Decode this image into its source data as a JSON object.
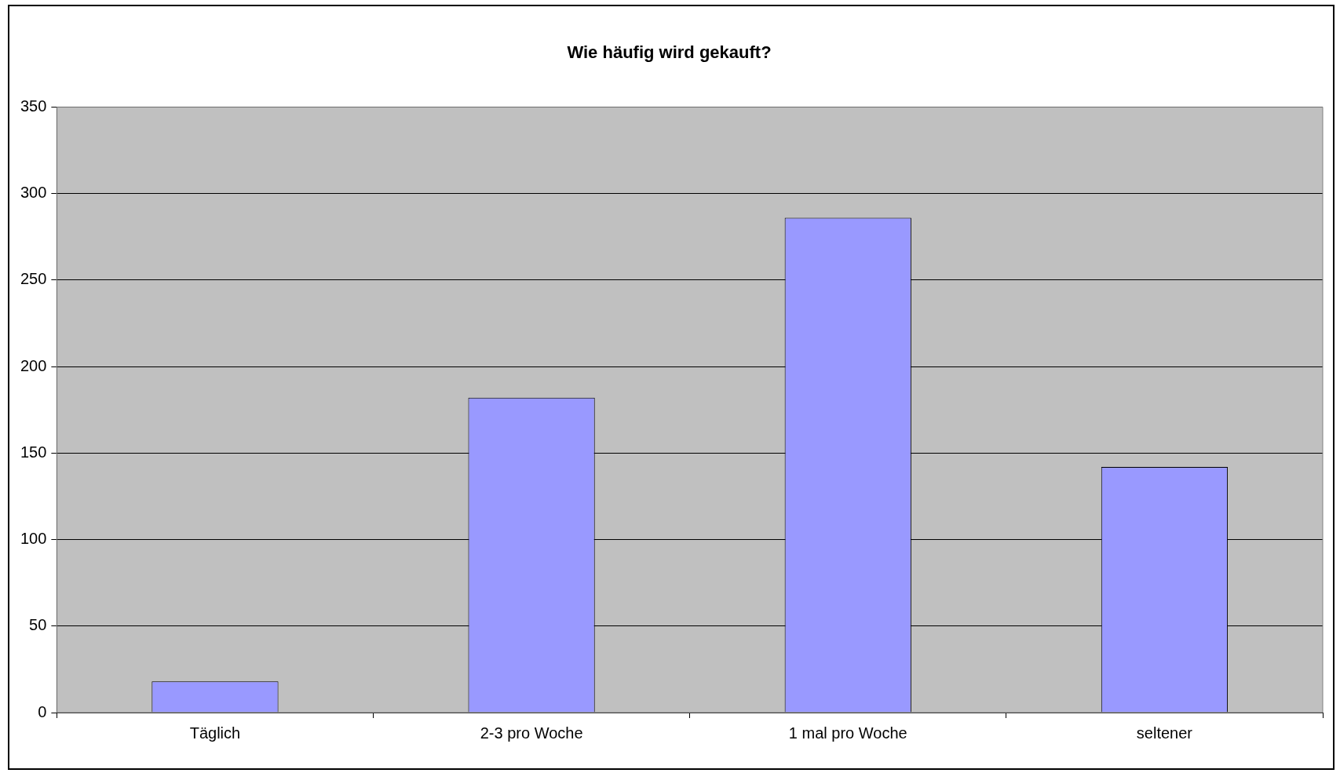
{
  "chart_data": {
    "type": "bar",
    "title": "Wie häufig wird gekauft?",
    "categories": [
      "Täglich",
      "2-3 pro Woche",
      "1 mal pro Woche",
      "seltener"
    ],
    "values": [
      18,
      182,
      286,
      142
    ],
    "color": "#9999ff",
    "ylim": [
      0,
      350
    ],
    "yticks": [
      0,
      50,
      100,
      150,
      200,
      250,
      300,
      350
    ],
    "grid": "y",
    "legend": false
  }
}
